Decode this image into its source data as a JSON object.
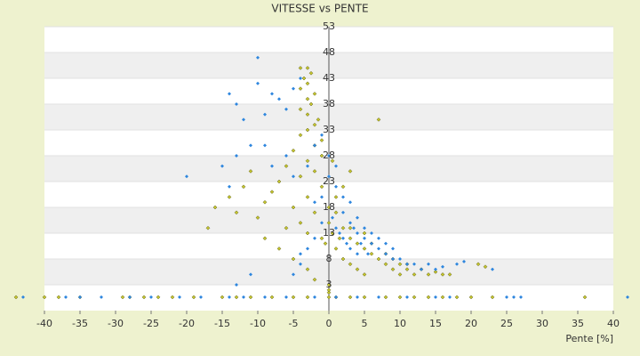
{
  "chart_data": {
    "type": "scatter",
    "title": "VITESSE vs PENTE",
    "x_label": "Pente [%]",
    "xlim": [
      -40,
      40
    ],
    "xticks": [
      -40,
      -35,
      -30,
      -25,
      -20,
      -15,
      -10,
      -5,
      0,
      5,
      10,
      15,
      20,
      25,
      30,
      35,
      40
    ],
    "ylim": [
      -2,
      53
    ],
    "yticks": [
      53,
      48,
      43,
      38,
      33,
      28,
      23,
      18,
      13,
      8,
      3
    ],
    "grid": true,
    "series": [
      {
        "color": "#c6c62e",
        "x": [
          -44,
          -40,
          -38,
          -35,
          -29,
          -28,
          -26,
          -24,
          -22,
          -19,
          -15,
          -13,
          -11,
          -8,
          -5,
          -3,
          0,
          0,
          1,
          3,
          5,
          8,
          10,
          12,
          14,
          16,
          18,
          20,
          23,
          36,
          -3,
          -4,
          -2.5,
          -3.5,
          -3,
          -4,
          -2,
          -3,
          -2.5,
          -4,
          -3,
          -1.5,
          -2,
          -3,
          -4,
          -1,
          -2,
          -5,
          -1,
          -3,
          -6,
          -2,
          -4,
          -7,
          -1,
          -8,
          -3,
          -9,
          -5,
          -2,
          -10,
          -4,
          -6,
          -3,
          -1,
          -14,
          -16,
          -12,
          -11,
          -13,
          -17,
          -9,
          -7,
          -5,
          -3,
          -2,
          0,
          0,
          1,
          2,
          3,
          4,
          5,
          6,
          7,
          8,
          9,
          10,
          11,
          12,
          13,
          14,
          15,
          16,
          17,
          21,
          22,
          1,
          2,
          3,
          0.5,
          1,
          2,
          3,
          4,
          5,
          0.5,
          -0.5,
          7,
          1.5,
          3,
          5,
          6,
          8,
          9,
          10,
          11,
          0,
          0
        ],
        "y": [
          0.6,
          0.6,
          0.6,
          0.6,
          0.6,
          0.6,
          0.6,
          0.6,
          0.6,
          0.6,
          0.6,
          0.6,
          0.6,
          0.6,
          0.6,
          0.6,
          0.6,
          1.5,
          0.6,
          0.6,
          0.6,
          0.6,
          0.6,
          0.6,
          0.6,
          0.6,
          0.6,
          0.6,
          0.6,
          0.6,
          45,
          45,
          44,
          43,
          42,
          41,
          40,
          39,
          38,
          37,
          36,
          35,
          34,
          33,
          32,
          31,
          30,
          29,
          28,
          27,
          26,
          25,
          24,
          23,
          22,
          21,
          20,
          19,
          18,
          17,
          16,
          15,
          14,
          13,
          12,
          20,
          18,
          22,
          25,
          17,
          14,
          12,
          10,
          8,
          6,
          4,
          18,
          15,
          17,
          14,
          12,
          11,
          10,
          9,
          8,
          7,
          6,
          7,
          6,
          5,
          6,
          5,
          5.5,
          5,
          5,
          7,
          6.5,
          20,
          22,
          25,
          27,
          10,
          8,
          7,
          6,
          5,
          13,
          11,
          35,
          12,
          14,
          13,
          11,
          9,
          8,
          5,
          7,
          2,
          3
        ]
      },
      {
        "color": "#2e86de",
        "x": [
          -43,
          -37,
          -35,
          -32,
          -28,
          -25,
          -21,
          -18,
          -14,
          -12,
          -9,
          -6,
          -2,
          1,
          4,
          7,
          11,
          15,
          17,
          25,
          26,
          27,
          42,
          -10,
          -14,
          -13,
          -10,
          -8,
          -9,
          -12,
          -7,
          -6,
          -5,
          -4,
          -11,
          -13,
          -15,
          -20,
          -14,
          -9,
          -8,
          -6,
          -5,
          -3,
          -2,
          -1,
          0,
          0,
          1,
          1,
          2,
          2,
          3,
          3,
          4,
          4,
          5,
          5,
          6,
          6,
          7,
          7,
          8,
          8,
          9,
          9,
          10,
          11,
          12,
          13,
          14,
          15,
          16,
          18,
          19,
          23,
          1,
          2,
          3,
          4,
          -1,
          -2,
          -3,
          -4,
          -11,
          -13,
          -5,
          -4,
          -2,
          -1,
          0.5,
          1.5,
          2.5,
          3.5,
          4.5,
          5.5
        ],
        "y": [
          0.6,
          0.6,
          0.6,
          0.6,
          0.6,
          0.6,
          0.6,
          0.6,
          0.6,
          0.6,
          0.6,
          0.6,
          0.6,
          0.6,
          0.6,
          0.6,
          0.6,
          0.6,
          0.6,
          0.6,
          0.6,
          0.6,
          0.6,
          47,
          40,
          38,
          42,
          40,
          36,
          35,
          39,
          37,
          41,
          43,
          30,
          28,
          26,
          24,
          22,
          30,
          26,
          28,
          24,
          26,
          30,
          32,
          28,
          24,
          26,
          22,
          20,
          17,
          15,
          19,
          13,
          16,
          12,
          14,
          11,
          13,
          10,
          12,
          9,
          11,
          8,
          10,
          8,
          7,
          7,
          6,
          7,
          6,
          6.5,
          7,
          7.5,
          6,
          14,
          12,
          10,
          9,
          15,
          12,
          10,
          7,
          5,
          3,
          5,
          9,
          19,
          20,
          16,
          13,
          11,
          14,
          11,
          9
        ]
      }
    ]
  }
}
